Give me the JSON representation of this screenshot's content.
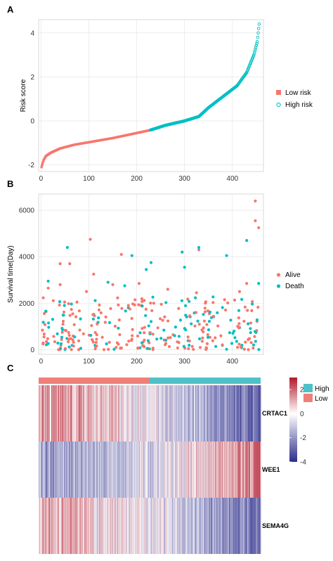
{
  "colors": {
    "low": "#F8766D",
    "high": "#00BFC4",
    "alive": "#F8766D",
    "death": "#00BFC4",
    "heat_high": "#B2182B",
    "heat_low": "#2C2C8C"
  },
  "chart_data": [
    {
      "panel": "A",
      "type": "scatter",
      "ylabel": "Risk score",
      "xlim": [
        -5,
        465
      ],
      "ylim": [
        -2.3,
        4.6
      ],
      "xticks": [
        "0",
        "100",
        "200",
        "300",
        "400"
      ],
      "yticks": [
        "-2",
        "0",
        "2",
        "4"
      ],
      "legend": {
        "position": "right",
        "entries": [
          "Low risk",
          "High risk"
        ]
      },
      "n_samples": 456,
      "cutoff_index": 228,
      "curve": [
        {
          "x": 1,
          "y": -2.1
        },
        {
          "x": 5,
          "y": -1.8
        },
        {
          "x": 10,
          "y": -1.6
        },
        {
          "x": 20,
          "y": -1.45
        },
        {
          "x": 40,
          "y": -1.25
        },
        {
          "x": 70,
          "y": -1.08
        },
        {
          "x": 100,
          "y": -0.97
        },
        {
          "x": 150,
          "y": -0.78
        },
        {
          "x": 200,
          "y": -0.55
        },
        {
          "x": 228,
          "y": -0.42
        },
        {
          "x": 260,
          "y": -0.2
        },
        {
          "x": 300,
          "y": 0.0
        },
        {
          "x": 330,
          "y": 0.2
        },
        {
          "x": 350,
          "y": 0.6
        },
        {
          "x": 380,
          "y": 1.1
        },
        {
          "x": 410,
          "y": 1.6
        },
        {
          "x": 430,
          "y": 2.2
        },
        {
          "x": 445,
          "y": 3.0
        },
        {
          "x": 452,
          "y": 3.6
        },
        {
          "x": 456,
          "y": 4.4
        }
      ]
    },
    {
      "panel": "B",
      "type": "scatter",
      "ylabel": "Survival time(Day)",
      "xlim": [
        -5,
        465
      ],
      "ylim": [
        -200,
        6700
      ],
      "xticks": [
        "0",
        "100",
        "200",
        "300",
        "400"
      ],
      "yticks": [
        "0",
        "2000",
        "4000",
        "6000"
      ],
      "legend": {
        "position": "right",
        "entries": [
          "Alive",
          "Death"
        ]
      },
      "points": [
        {
          "x": 103,
          "y": 4750,
          "status": "Alive"
        },
        {
          "x": 168,
          "y": 4100,
          "status": "Alive"
        },
        {
          "x": 40,
          "y": 3700,
          "status": "Alive"
        },
        {
          "x": 60,
          "y": 3700,
          "status": "Alive"
        },
        {
          "x": 330,
          "y": 4300,
          "status": "Alive"
        },
        {
          "x": 448,
          "y": 6400,
          "status": "Alive"
        },
        {
          "x": 448,
          "y": 5550,
          "status": "Alive"
        },
        {
          "x": 455,
          "y": 5250,
          "status": "Alive"
        },
        {
          "x": 55,
          "y": 4400,
          "status": "Death"
        },
        {
          "x": 190,
          "y": 4050,
          "status": "Death"
        },
        {
          "x": 220,
          "y": 3450,
          "status": "Death"
        },
        {
          "x": 230,
          "y": 3750,
          "status": "Death"
        },
        {
          "x": 295,
          "y": 4200,
          "status": "Death"
        },
        {
          "x": 300,
          "y": 3550,
          "status": "Death"
        },
        {
          "x": 330,
          "y": 4400,
          "status": "Death"
        },
        {
          "x": 388,
          "y": 4050,
          "status": "Death"
        },
        {
          "x": 430,
          "y": 4700,
          "status": "Death"
        },
        {
          "x": 455,
          "y": 2850,
          "status": "Death"
        },
        {
          "x": 15,
          "y": 2950,
          "status": "Death"
        },
        {
          "x": 140,
          "y": 2900,
          "status": "Death"
        },
        {
          "x": 175,
          "y": 2750,
          "status": "Death"
        },
        {
          "x": 15,
          "y": 2650,
          "status": "Alive"
        },
        {
          "x": 40,
          "y": 2800,
          "status": "Alive"
        },
        {
          "x": 95,
          "y": 2500,
          "status": "Alive"
        },
        {
          "x": 110,
          "y": 3250,
          "status": "Alive"
        },
        {
          "x": 150,
          "y": 2800,
          "status": "Alive"
        },
        {
          "x": 205,
          "y": 2850,
          "status": "Alive"
        },
        {
          "x": 265,
          "y": 2600,
          "status": "Alive"
        },
        {
          "x": 325,
          "y": 2450,
          "status": "Alive"
        },
        {
          "x": 415,
          "y": 2500,
          "status": "Alive"
        },
        {
          "x": 430,
          "y": 2850,
          "status": "Alive"
        }
      ],
      "cloud": {
        "n": 320,
        "ymax": 2300,
        "seed": 7
      }
    },
    {
      "panel": "C",
      "type": "heatmap",
      "rows": [
        "CRTAC1",
        "WEE1",
        "SEMA4G"
      ],
      "groups": [
        "High",
        "Low"
      ],
      "color_scale": {
        "min": -4,
        "max": 3,
        "ticks": [
          "2",
          "0",
          "-2",
          "-4"
        ]
      },
      "n_columns": 456,
      "group_split": 228,
      "row_trend": [
        {
          "gene": "CRTAC1",
          "start": 1.2,
          "end": -3.0
        },
        {
          "gene": "WEE1",
          "start": -1.6,
          "end": 1.8
        },
        {
          "gene": "SEMA4G",
          "start": 1.0,
          "end": -2.6
        }
      ]
    }
  ]
}
